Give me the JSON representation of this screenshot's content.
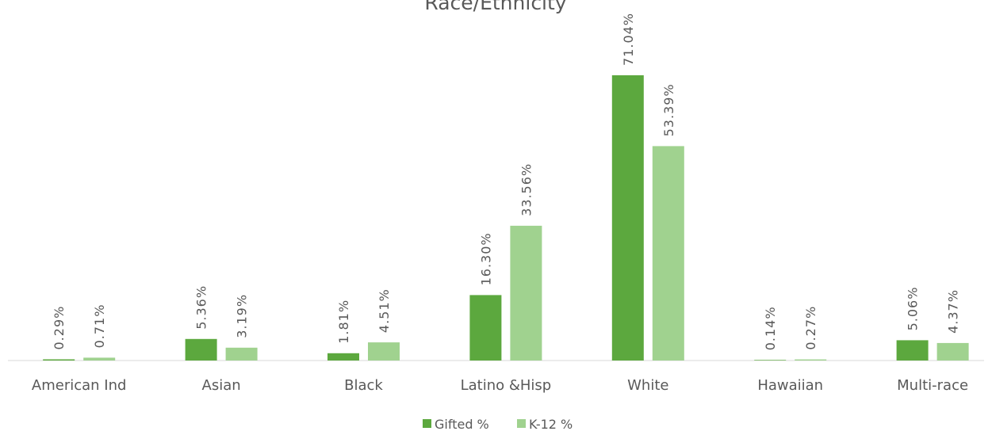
{
  "chart_data": {
    "type": "bar",
    "title": "Race/Ethnicity",
    "categories": [
      "American Ind",
      "Asian",
      "Black",
      "Latino &Hisp",
      "White",
      "Hawaiian",
      "Multi-race"
    ],
    "series": [
      {
        "name": "Gifted %",
        "color": "#5ca83e",
        "values": [
          0.29,
          5.36,
          1.81,
          16.3,
          71.04,
          0.14,
          5.06
        ],
        "labels": [
          "0.29%",
          "5.36%",
          "1.81%",
          "16.30%",
          "71.04%",
          "0.14%",
          "5.06%"
        ]
      },
      {
        "name": "K-12 %",
        "color": "#a0d28f",
        "values": [
          0.71,
          3.19,
          4.51,
          33.56,
          53.39,
          0.27,
          4.37
        ],
        "labels": [
          "0.71%",
          "3.19%",
          "4.51%",
          "33.56%",
          "53.39%",
          "0.27%",
          "4.37%"
        ]
      }
    ],
    "ylim": [
      0,
      80
    ],
    "grid": false,
    "legend_position": "bottom"
  }
}
